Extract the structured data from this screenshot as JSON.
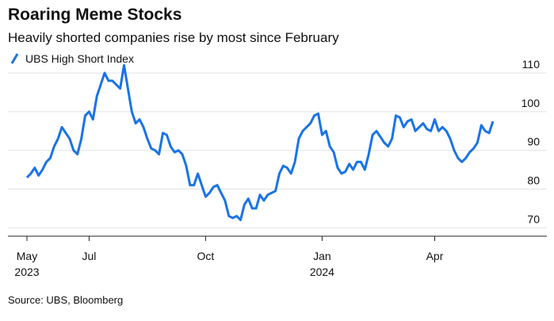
{
  "chart_data": {
    "type": "line",
    "title": "Roaring Meme Stocks",
    "subtitle": "Heavily shorted companies rise by most since February",
    "source": "Source: UBS, Bloomberg",
    "categories": [
      "May 2023",
      null,
      null,
      null,
      null,
      null,
      null,
      null,
      null,
      null,
      null,
      null,
      null,
      null,
      null,
      null,
      "Jul",
      null,
      null,
      null,
      null,
      null,
      null,
      null,
      null,
      null,
      null,
      null,
      null,
      null,
      null,
      null,
      null,
      null,
      null,
      null,
      null,
      null,
      null,
      null,
      null,
      null,
      null,
      null,
      null,
      null,
      "Oct",
      null,
      null,
      null,
      null,
      null,
      null,
      null,
      null,
      null,
      null,
      null,
      null,
      null,
      null,
      null,
      null,
      null,
      null,
      null,
      null,
      null,
      null,
      null,
      null,
      null,
      null,
      null,
      null,
      null,
      "Jan 2024",
      null,
      null,
      null,
      null,
      null,
      null,
      null,
      null,
      null,
      null,
      null,
      null,
      null,
      null,
      null,
      null,
      null,
      null,
      null,
      null,
      null,
      null,
      null,
      null,
      null,
      null,
      null,
      null,
      "Apr",
      null,
      null,
      null,
      null,
      null,
      null,
      null,
      null,
      null,
      null,
      null,
      null,
      null,
      null,
      null
    ],
    "series": [
      {
        "name": "UBS High Short Index",
        "color": "#1a73e8",
        "values": [
          83,
          84,
          85.5,
          83.5,
          85,
          87,
          88,
          91,
          93,
          96,
          94.5,
          93,
          90,
          89,
          93,
          99,
          100,
          98,
          104,
          107,
          110,
          108,
          108,
          107,
          106,
          112,
          106,
          100,
          97,
          98,
          96,
          93,
          90.5,
          90,
          89,
          94.5,
          94,
          91,
          89.5,
          90,
          89,
          86,
          81,
          81,
          84,
          81,
          78,
          79,
          80.5,
          81,
          79,
          77,
          73,
          72.5,
          73,
          72,
          76,
          77.5,
          75,
          75,
          78.5,
          77,
          78.5,
          79,
          79.5,
          84,
          86,
          85.5,
          84,
          87,
          93,
          95,
          96,
          97,
          99,
          99.5,
          94,
          95,
          91,
          89.5,
          85.5,
          84,
          84.5,
          86.5,
          85,
          87,
          87,
          85,
          89,
          94,
          95,
          93.5,
          92,
          91,
          93,
          99,
          98.5,
          96,
          97.5,
          98,
          95,
          96,
          97,
          95.5,
          95,
          98,
          95,
          96,
          95,
          93,
          90,
          88,
          87,
          88,
          89.5,
          90.5,
          92,
          96.5,
          95,
          94.5,
          97.5
        ]
      }
    ],
    "ylim": [
      67.8,
      112.9
    ],
    "yticks": [
      70,
      80,
      90,
      100,
      110
    ],
    "grid": true,
    "legend": "top-left"
  }
}
